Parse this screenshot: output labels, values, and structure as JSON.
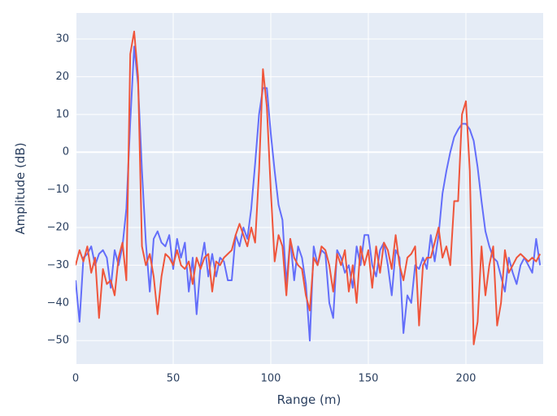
{
  "chart_data": {
    "type": "line",
    "x_label": "Range (m)",
    "y_label": "Amplitude (dB)",
    "xlim": [
      0,
      239.6
    ],
    "ylim": [
      -56.2,
      36.9
    ],
    "xticks": [
      0,
      50,
      100,
      150,
      200
    ],
    "yticks": [
      {
        "value": -50,
        "label": "−50"
      },
      {
        "value": -40,
        "label": "−40"
      },
      {
        "value": -30,
        "label": "−30"
      },
      {
        "value": -20,
        "label": "−20"
      },
      {
        "value": -10,
        "label": "−10"
      },
      0,
      10,
      20,
      30
    ],
    "grid": true,
    "zero_line": true,
    "x": [
      0,
      2,
      4,
      6,
      8,
      10,
      12,
      14,
      16,
      18,
      20,
      22,
      24,
      26,
      28,
      30,
      32,
      34,
      36,
      38,
      40,
      42,
      44,
      46,
      48,
      50,
      52,
      54,
      56,
      58,
      60,
      62,
      64,
      66,
      68,
      70,
      72,
      74,
      76,
      78,
      80,
      82,
      84,
      86,
      88,
      90,
      92,
      94,
      96,
      98,
      100,
      102,
      104,
      106,
      108,
      110,
      112,
      114,
      116,
      118,
      120,
      122,
      124,
      126,
      128,
      130,
      132,
      134,
      136,
      138,
      140,
      142,
      144,
      146,
      148,
      150,
      152,
      154,
      156,
      158,
      160,
      162,
      164,
      166,
      168,
      170,
      172,
      174,
      176,
      178,
      180,
      182,
      184,
      186,
      188,
      190,
      192,
      194,
      196,
      198,
      200,
      202,
      204,
      206,
      208,
      210,
      212,
      214,
      216,
      218,
      220,
      222,
      224,
      226,
      228,
      230,
      232,
      234,
      236,
      238
    ],
    "series": [
      {
        "color": "#636efa",
        "values": [
          -34,
          -45,
          -28,
          -27,
          -25,
          -30,
          -27,
          -26,
          -28,
          -36,
          -26,
          -30,
          -25,
          -15,
          8,
          28,
          18,
          -5,
          -24,
          -37,
          -23,
          -21,
          -24,
          -25,
          -22,
          -31,
          -23,
          -28,
          -24,
          -37,
          -28,
          -43,
          -30,
          -24,
          -33,
          -27,
          -33,
          -28,
          -29,
          -34,
          -34,
          -22,
          -25,
          -20,
          -23,
          -15,
          -3,
          10,
          17,
          17,
          5,
          -5,
          -14,
          -18,
          -35,
          -23,
          -34,
          -25,
          -28,
          -35,
          -50,
          -25,
          -30,
          -26,
          -27,
          -40,
          -44,
          -26,
          -28,
          -32,
          -30,
          -36,
          -25,
          -30,
          -22,
          -22,
          -30,
          -33,
          -26,
          -24,
          -30,
          -38,
          -26,
          -28,
          -48,
          -38,
          -40,
          -30,
          -31,
          -28,
          -31,
          -22,
          -29,
          -22,
          -11,
          -5,
          0,
          4,
          6,
          7.5,
          7.5,
          6,
          3,
          -4,
          -13,
          -21,
          -25,
          -28,
          -29,
          -33,
          -37,
          -28,
          -32,
          -35,
          -30,
          -28,
          -30,
          -32,
          -23,
          -30
        ]
      },
      {
        "color": "#ef553b",
        "values": [
          -30,
          -26,
          -29,
          -25,
          -32,
          -28,
          -44,
          -31,
          -35,
          -34,
          -38,
          -28,
          -24,
          -34,
          26,
          32,
          20,
          -25,
          -30,
          -27,
          -33,
          -43,
          -33,
          -27,
          -28,
          -30,
          -26,
          -30,
          -31,
          -29,
          -35,
          -28,
          -31,
          -28,
          -27,
          -37,
          -29,
          -30,
          -28,
          -27,
          -26,
          -22,
          -19,
          -22,
          -25,
          -20,
          -24,
          -5,
          22,
          12,
          -10,
          -29,
          -22,
          -25,
          -38,
          -23,
          -28,
          -30,
          -31,
          -38,
          -42,
          -28,
          -30,
          -25,
          -26,
          -30,
          -37,
          -27,
          -30,
          -26,
          -37,
          -30,
          -40,
          -25,
          -30,
          -26,
          -36,
          -25,
          -32,
          -24,
          -26,
          -31,
          -22,
          -30,
          -34,
          -28,
          -27,
          -25,
          -46,
          -30,
          -28,
          -28,
          -24,
          -20,
          -28,
          -25,
          -30,
          -13,
          -13,
          10,
          13.5,
          -5,
          -51,
          -45,
          -25,
          -38,
          -30,
          -25,
          -46,
          -40,
          -26,
          -32,
          -30,
          -28,
          -27,
          -28,
          -29,
          -28,
          -29,
          -27
        ]
      }
    ]
  }
}
